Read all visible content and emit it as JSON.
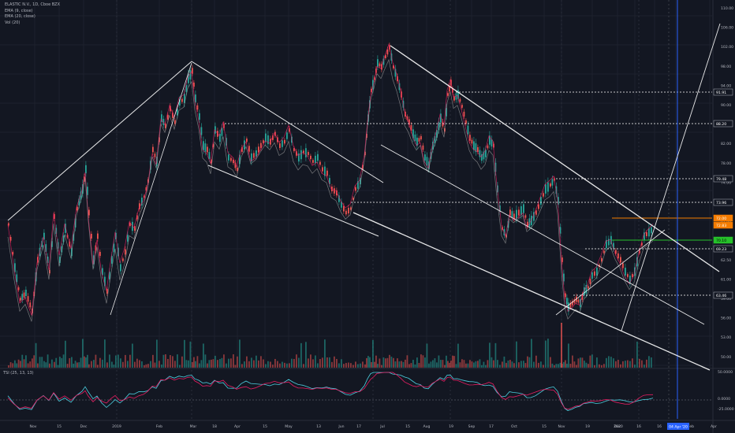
{
  "header": {
    "symbol_line": "ELASTIC N.V., 1D, Cboe BZX",
    "indicators": [
      "EMA (9, close)",
      "EMA (20, close)",
      "Vol (20)"
    ]
  },
  "oscillator": {
    "label": "TSI (25, 13, 13)",
    "scale": [
      "50.0000",
      "0.0000",
      "-25.0000"
    ]
  },
  "price_axis": {
    "ticks": [
      "110.00",
      "106.00",
      "102.00",
      "98.00",
      "94.00",
      "90.00",
      "86.00",
      "82.00",
      "78.00",
      "74.00",
      "70.00",
      "67.00",
      "65.50",
      "62.50",
      "61.00",
      "59.00",
      "56.00",
      "53.00",
      "50.00"
    ],
    "tags": [
      {
        "text": "91.91",
        "color": "#ffffff",
        "bg": "#131722"
      },
      {
        "text": "88.20",
        "color": "#ffffff",
        "bg": "#131722"
      },
      {
        "text": "79.48",
        "color": "#ffffff",
        "bg": "#131722"
      },
      {
        "text": "73.96",
        "color": "#ffffff",
        "bg": "#131722"
      },
      {
        "text": "72.00",
        "color": "#ffffff",
        "bg": "#f57c00"
      },
      {
        "text": "72.83",
        "color": "#ffffff",
        "bg": "#f57c00"
      },
      {
        "text": "70.10",
        "color": "#000000",
        "bg": "#26c22a"
      },
      {
        "text": "69.23",
        "color": "#ffffff",
        "bg": "#131722"
      },
      {
        "text": "63.46",
        "color": "#ffffff",
        "bg": "#131722"
      }
    ]
  },
  "time_axis": {
    "labels": [
      "Nov",
      "15",
      "Dec",
      "2019",
      "Feb",
      "Mar",
      "18",
      "Apr",
      "15",
      "May",
      "13",
      "Jun",
      "17",
      "Jul",
      "15",
      "Aug",
      "19",
      "Sep",
      "17",
      "Oct",
      "15",
      "Nov",
      "19",
      "Dec",
      "16",
      "2020",
      "16",
      "Feb",
      "16",
      "Apr"
    ],
    "date_tag": "04 Apr '20"
  },
  "colors": {
    "background": "#131722",
    "up": "#26a69a",
    "down": "#ef5350",
    "trendline": "#ffffff",
    "level_line": "#ffffff",
    "orange_level": "#f57c00",
    "green_level": "#26c22a",
    "date_marker": "#2962ff",
    "ema_fast": "#e91e63",
    "ema_slow": "#a0a0a0",
    "tsi": "#4dd0e1",
    "tsi_signal": "#e91e63"
  }
}
